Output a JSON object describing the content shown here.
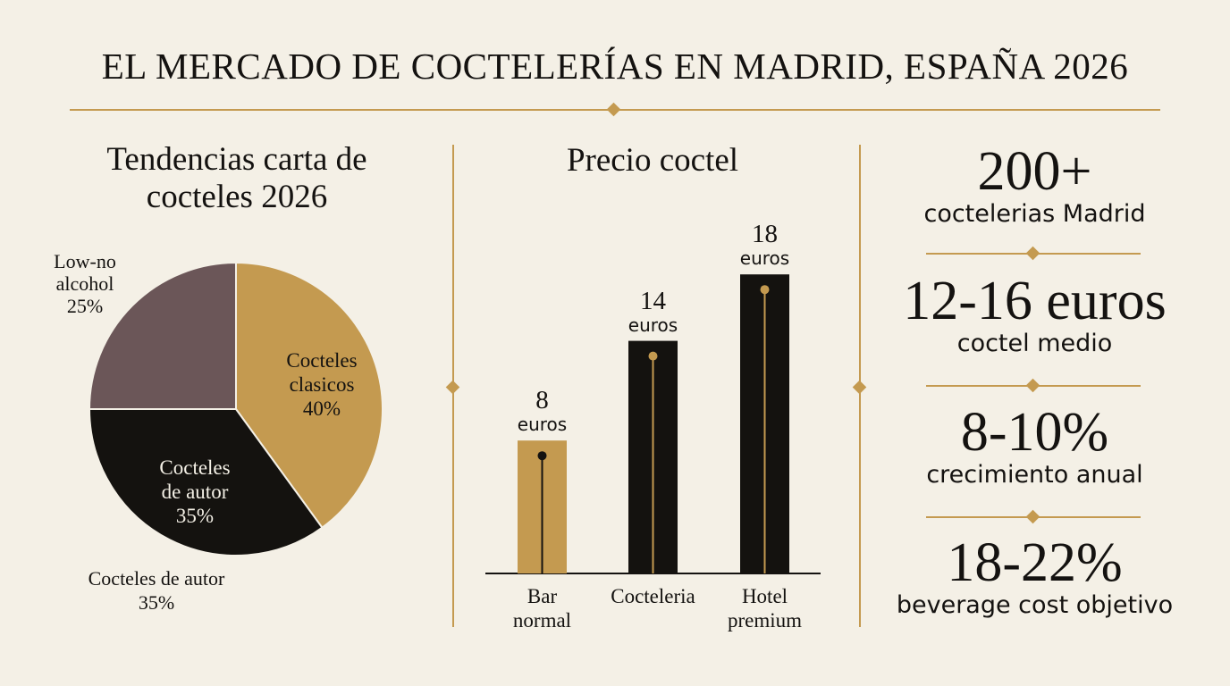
{
  "title": "EL MERCADO DE COCTELERÍAS EN MADRID, ESPAÑA 2026",
  "colors": {
    "background": "#f4f0e6",
    "gold": "#c49a50",
    "black": "#14120f",
    "mauve": "#6b5658"
  },
  "chart_data": [
    {
      "type": "pie",
      "title": "Tendencias carta de cocteles 2026",
      "slices": [
        {
          "label": "Cocteles clasicos",
          "value": 40,
          "display": "40%",
          "color": "#c49a50"
        },
        {
          "label": "Cocteles de autor",
          "value": 35,
          "display": "35%",
          "color": "#14120f"
        },
        {
          "label": "Low-no alcohol",
          "value": 25,
          "display": "25%",
          "color": "#6b5658"
        }
      ],
      "outside_labels": {
        "low_no": [
          "Low-no",
          "alcohol",
          "25%"
        ],
        "autor": [
          "Cocteles de autor",
          "35%"
        ]
      },
      "inside_labels": {
        "clasicos": [
          "Cocteles",
          "clasicos",
          "40%"
        ],
        "autor": [
          "Cocteles",
          "de autor",
          "35%"
        ]
      }
    },
    {
      "type": "bar",
      "title": "Precio coctel",
      "categories": [
        [
          "Bar",
          "normal"
        ],
        [
          "Cocteleria"
        ],
        [
          "Hotel",
          "premium"
        ]
      ],
      "values": [
        8,
        14,
        18
      ],
      "unit": "euros",
      "colors": [
        "#c49a50",
        "#14120f",
        "#14120f"
      ]
    }
  ],
  "stats": [
    {
      "value": "200+",
      "label": "coctelerias Madrid"
    },
    {
      "value": "12-16 euros",
      "label": "coctel medio"
    },
    {
      "value": "8-10%",
      "label": "crecimiento anual"
    },
    {
      "value": "18-22%",
      "label": "beverage cost objetivo"
    }
  ]
}
